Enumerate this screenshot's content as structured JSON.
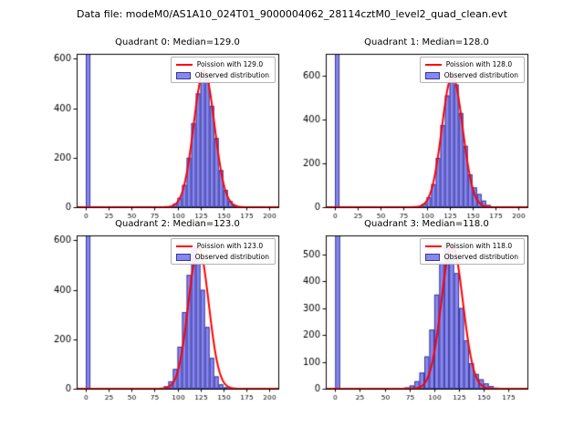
{
  "figure": {
    "title": "Data file: modeM0/AS1A10_024T01_9000004062_28114cztM0_level2_quad_clean.evt"
  },
  "colors": {
    "line": "#ff0000",
    "bar_fill": "#8787f0",
    "bar_edge": "#3a3a99",
    "axis": "#000000",
    "legend_border": "#b3b3b3"
  },
  "chart_data": [
    {
      "type": "bar",
      "subtype": "histogram-with-fit-line",
      "title": "Quadrant 0: Median=129.0",
      "median": 129.0,
      "legend": [
        "Poission with 129.0",
        "Observed distribution"
      ],
      "xlim": [
        -10,
        210
      ],
      "ylim": [
        0,
        620
      ],
      "xticks": [
        0,
        25,
        50,
        75,
        100,
        125,
        150,
        175,
        200
      ],
      "yticks": [
        0,
        200,
        400,
        600
      ],
      "bins": {
        "start": 0,
        "width": 5,
        "values": [
          2000,
          0,
          0,
          0,
          0,
          0,
          0,
          0,
          0,
          0,
          0,
          0,
          0,
          0,
          0,
          0,
          0,
          1,
          3,
          14,
          38,
          90,
          200,
          340,
          460,
          555,
          520,
          410,
          280,
          150,
          70,
          25,
          8,
          2,
          1,
          0,
          0,
          0,
          0,
          0
        ]
      },
      "curve": {
        "shape": "gaussian",
        "mu": 129.0,
        "sigma": 11.36,
        "amplitude": 550
      }
    },
    {
      "type": "bar",
      "subtype": "histogram-with-fit-line",
      "title": "Quadrant 1: Median=128.0",
      "median": 128.0,
      "legend": [
        "Poission with 128.0",
        "Observed distribution"
      ],
      "xlim": [
        -10,
        210
      ],
      "ylim": [
        0,
        700
      ],
      "xticks": [
        0,
        25,
        50,
        75,
        100,
        125,
        150,
        175,
        200
      ],
      "yticks": [
        0,
        200,
        400,
        600
      ],
      "bins": {
        "start": 0,
        "width": 5,
        "values": [
          2200,
          0,
          0,
          0,
          0,
          0,
          0,
          0,
          0,
          0,
          0,
          0,
          0,
          0,
          0,
          0,
          0,
          1,
          4,
          16,
          45,
          105,
          225,
          375,
          510,
          620,
          560,
          430,
          280,
          150,
          90,
          60,
          30,
          10,
          3,
          1,
          0,
          0,
          0,
          0
        ]
      },
      "curve": {
        "shape": "gaussian",
        "mu": 128.0,
        "sigma": 11.31,
        "amplitude": 600
      }
    },
    {
      "type": "bar",
      "subtype": "histogram-with-fit-line",
      "title": "Quadrant 2: Median=123.0",
      "median": 123.0,
      "legend": [
        "Poission with 123.0",
        "Observed distribution"
      ],
      "xlim": [
        -10,
        210
      ],
      "ylim": [
        0,
        620
      ],
      "xticks": [
        0,
        25,
        50,
        75,
        100,
        125,
        150,
        175,
        200
      ],
      "yticks": [
        0,
        200,
        400,
        600
      ],
      "bins": {
        "start": 0,
        "width": 5,
        "values": [
          2000,
          0,
          0,
          0,
          0,
          0,
          0,
          0,
          0,
          0,
          0,
          0,
          0,
          0,
          0,
          1,
          3,
          10,
          30,
          80,
          170,
          310,
          460,
          580,
          540,
          400,
          250,
          125,
          50,
          18,
          6,
          2,
          0,
          0,
          0,
          0,
          0,
          0,
          0,
          0
        ]
      },
      "curve": {
        "shape": "gaussian",
        "mu": 123.0,
        "sigma": 11.09,
        "amplitude": 570
      }
    },
    {
      "type": "bar",
      "subtype": "histogram-with-fit-line",
      "title": "Quadrant 3: Median=118.0",
      "median": 118.0,
      "legend": [
        "Poission with 118.0",
        "Observed distribution"
      ],
      "xlim": [
        -9.5,
        194
      ],
      "ylim": [
        0,
        570
      ],
      "xticks": [
        0,
        25,
        50,
        75,
        100,
        125,
        150,
        175
      ],
      "yticks": [
        0,
        100,
        200,
        300,
        400,
        500
      ],
      "bins": {
        "start": 0,
        "width": 5,
        "values": [
          2000,
          0,
          0,
          0,
          0,
          0,
          0,
          0,
          0,
          0,
          0,
          0,
          1,
          2,
          5,
          12,
          28,
          60,
          120,
          220,
          350,
          470,
          540,
          530,
          430,
          300,
          180,
          95,
          55,
          35,
          20,
          10,
          4,
          1,
          0,
          0,
          0,
          0
        ]
      },
      "curve": {
        "shape": "gaussian",
        "mu": 118.0,
        "sigma": 10.86,
        "amplitude": 535
      }
    }
  ]
}
